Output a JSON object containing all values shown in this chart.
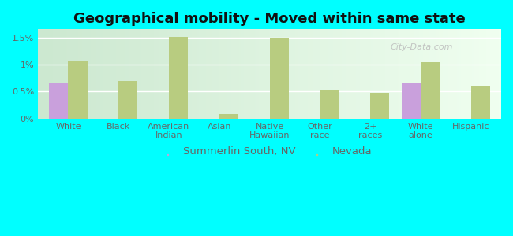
{
  "title": "Geographical mobility - Moved within same state",
  "categories": [
    "White",
    "Black",
    "American\nIndian",
    "Asian",
    "Native\nHawaiian",
    "Other\nrace",
    "2+\nraces",
    "White\nalone",
    "Hispanic"
  ],
  "summerlin_values": [
    0.67,
    0.0,
    0.0,
    0.0,
    0.0,
    0.0,
    0.0,
    0.65,
    0.0
  ],
  "nevada_values": [
    1.06,
    0.7,
    1.51,
    0.08,
    1.49,
    0.54,
    0.48,
    1.05,
    0.61
  ],
  "summerlin_color": "#c9a0dc",
  "nevada_color": "#b8cc80",
  "background_color": "#00ffff",
  "plot_bg_color_left": "#d4edda",
  "plot_bg_color_right": "#f5fff5",
  "yticks": [
    0,
    0.5,
    1.0,
    1.5
  ],
  "ytick_labels": [
    "0%",
    "0.5%",
    "1%",
    "1.5%"
  ],
  "ylim": [
    0,
    1.65
  ],
  "bar_width": 0.38,
  "legend_labels": [
    "Summerlin South, NV",
    "Nevada"
  ],
  "title_fontsize": 13,
  "tick_fontsize": 8,
  "legend_fontsize": 9.5,
  "title_color": "#111111",
  "tick_color": "#666666"
}
